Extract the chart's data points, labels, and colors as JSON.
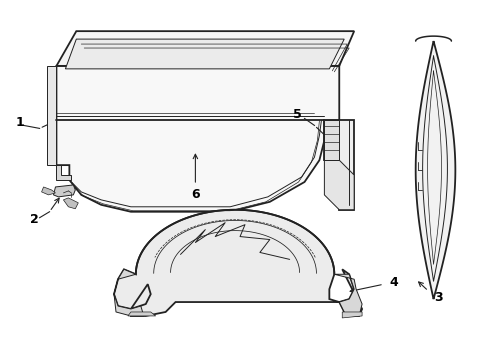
{
  "bg_color": "#ffffff",
  "line_color": "#222222",
  "lw_main": 1.3,
  "lw_thin": 0.7,
  "lw_vth": 0.5,
  "label_fontsize": 9,
  "figsize": [
    4.9,
    3.6
  ],
  "dpi": 100
}
